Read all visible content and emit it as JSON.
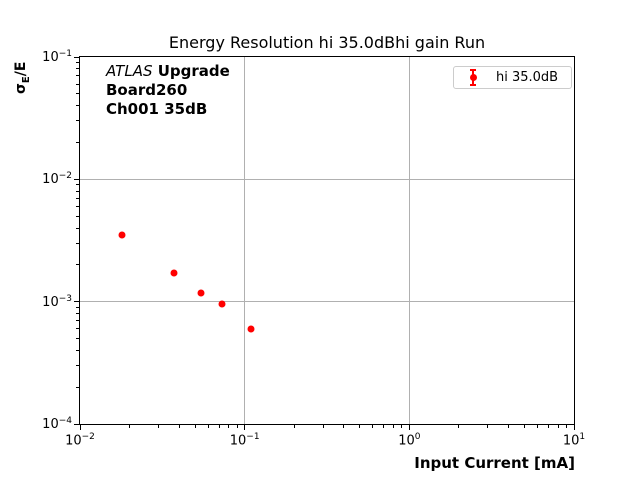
{
  "chart_data": {
    "type": "scatter",
    "title": "Energy Resolution hi 35.0dBhi gain Run",
    "xlabel": "Input Current [mA]",
    "ylabel": "sigma_E/E",
    "ylabel_parts": {
      "base": "σ",
      "sub": "E",
      "rest": "/E"
    },
    "xscale": "log",
    "yscale": "log",
    "xlim": [
      0.01,
      10
    ],
    "ylim": [
      0.0001,
      0.1
    ],
    "x_tick_exponents": [
      -2,
      -1,
      0,
      1
    ],
    "y_tick_exponents": [
      -1,
      -2,
      -3,
      -4
    ],
    "grid": "major-only",
    "gridline_color": "#b0b0b0",
    "legend_position": "upper right",
    "series": [
      {
        "name": "hi 35.0dB",
        "color": "#ff0000",
        "marker": "circle-with-errorbar",
        "points": [
          {
            "x": 0.018,
            "y": 0.0035
          },
          {
            "x": 0.037,
            "y": 0.0017
          },
          {
            "x": 0.054,
            "y": 0.00117
          },
          {
            "x": 0.073,
            "y": 0.00096
          },
          {
            "x": 0.109,
            "y": 0.0006
          }
        ]
      }
    ]
  },
  "annotation": {
    "line1_italic": "ATLAS",
    "line1_bold": " Upgrade",
    "line2": "Board260",
    "line3": "Ch001 35dB"
  },
  "legend": {
    "label": "hi 35.0dB",
    "marker_color": "#ff0000",
    "border_color": "#cccccc"
  }
}
